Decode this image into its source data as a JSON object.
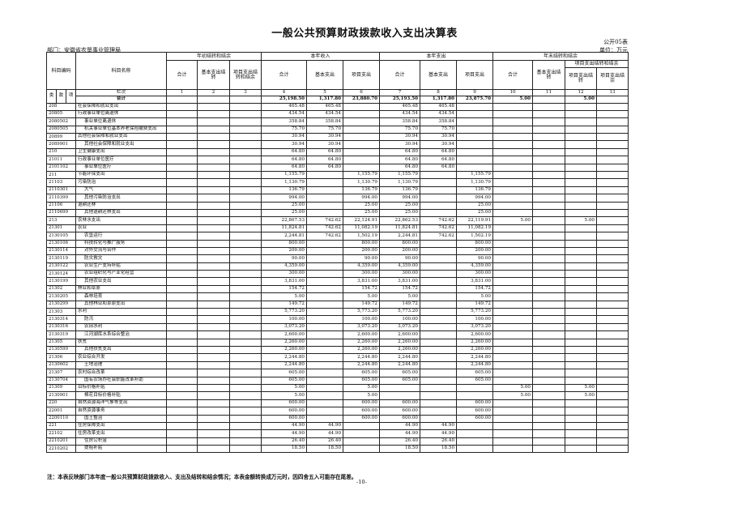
{
  "title": "一般公共预算财政拨款收入支出决算表",
  "form_no": "公开05表",
  "unit": "单位：万元",
  "department": "部门：安徽省农垦事业管理局",
  "headers": {
    "code": "科目编码",
    "name": "科目名称",
    "group_begin": "年初结转和结余",
    "group_income": "本年收入",
    "group_expense": "本年支出",
    "group_end": "年末结转和结余",
    "total": "合计",
    "basic_carry": "基本支出结转",
    "project_carry_balance": "项目支出结转和结余",
    "basic": "基本支出",
    "project": "项目支出",
    "project_carry": "项目支出结转",
    "project_balance": "项目支出结余",
    "lei": "类",
    "kuan": "款",
    "xiang": "项",
    "column_index_label": "栏次",
    "column_indices": [
      "1",
      "2",
      "3",
      "4",
      "5",
      "6",
      "7",
      "8",
      "9",
      "10",
      "11",
      "12",
      "13"
    ],
    "total_row_label": "合计"
  },
  "total_row": [
    "",
    "",
    "",
    "25,198.50",
    "1,317.80",
    "23,880.70",
    "25,193.50",
    "1,317.80",
    "23,875.70",
    "5.00",
    "",
    "5.00",
    ""
  ],
  "rows": [
    {
      "code": "208",
      "name": "社会保障和就业支出",
      "level": 0,
      "v": [
        "",
        "",
        "",
        "465.48",
        "465.48",
        "",
        "465.48",
        "465.48",
        "",
        "",
        "",
        "",
        ""
      ]
    },
    {
      "code": "20805",
      "name": "行政事业单位离退休",
      "level": 0,
      "v": [
        "",
        "",
        "",
        "434.54",
        "434.54",
        "",
        "434.54",
        "434.54",
        "",
        "",
        "",
        "",
        ""
      ]
    },
    {
      "code": "2080502",
      "name": "事业单位离退休",
      "level": 1,
      "v": [
        "",
        "",
        "",
        "358.84",
        "358.84",
        "",
        "358.84",
        "358.84",
        "",
        "",
        "",
        "",
        ""
      ]
    },
    {
      "code": "2080505",
      "name": "机关事业单位基本养老保险缴费支出",
      "level": 1,
      "v": [
        "",
        "",
        "",
        "75.70",
        "75.70",
        "",
        "75.70",
        "75.70",
        "",
        "",
        "",
        "",
        ""
      ]
    },
    {
      "code": "20899",
      "name": "其他社会保障和就业支出",
      "level": 0,
      "v": [
        "",
        "",
        "",
        "30.94",
        "30.94",
        "",
        "30.94",
        "30.94",
        "",
        "",
        "",
        "",
        ""
      ]
    },
    {
      "code": "2089901",
      "name": "其他社会保障和就业支出",
      "level": 1,
      "v": [
        "",
        "",
        "",
        "30.94",
        "30.94",
        "",
        "30.94",
        "30.94",
        "",
        "",
        "",
        "",
        ""
      ]
    },
    {
      "code": "210",
      "name": "卫生健康支出",
      "level": 0,
      "v": [
        "",
        "",
        "",
        "64.80",
        "64.80",
        "",
        "64.80",
        "64.80",
        "",
        "",
        "",
        "",
        ""
      ]
    },
    {
      "code": "21011",
      "name": "行政事业单位医疗",
      "level": 0,
      "v": [
        "",
        "",
        "",
        "64.80",
        "64.80",
        "",
        "64.80",
        "64.80",
        "",
        "",
        "",
        "",
        ""
      ]
    },
    {
      "code": "2101102",
      "name": "事业单位医疗",
      "level": 1,
      "v": [
        "",
        "",
        "",
        "64.80",
        "64.80",
        "",
        "64.80",
        "64.80",
        "",
        "",
        "",
        "",
        ""
      ]
    },
    {
      "code": "211",
      "name": "节能环保支出",
      "level": 0,
      "v": [
        "",
        "",
        "",
        "1,155.79",
        "",
        "1,155.79",
        "1,155.79",
        "",
        "1,155.79",
        "",
        "",
        "",
        ""
      ]
    },
    {
      "code": "21103",
      "name": "污染防治",
      "level": 0,
      "v": [
        "",
        "",
        "",
        "1,130.79",
        "",
        "1,130.79",
        "1,130.79",
        "",
        "1,130.79",
        "",
        "",
        "",
        ""
      ]
    },
    {
      "code": "2110301",
      "name": "大气",
      "level": 1,
      "v": [
        "",
        "",
        "",
        "136.79",
        "",
        "136.79",
        "136.79",
        "",
        "136.79",
        "",
        "",
        "",
        ""
      ]
    },
    {
      "code": "2110399",
      "name": "其他污染防治支出",
      "level": 1,
      "v": [
        "",
        "",
        "",
        "994.00",
        "",
        "994.00",
        "994.00",
        "",
        "994.00",
        "",
        "",
        "",
        ""
      ]
    },
    {
      "code": "21106",
      "name": "退耕还林",
      "level": 0,
      "v": [
        "",
        "",
        "",
        "25.00",
        "",
        "25.00",
        "25.00",
        "",
        "25.00",
        "",
        "",
        "",
        ""
      ]
    },
    {
      "code": "2110699",
      "name": "其他退耕还林支出",
      "level": 1,
      "v": [
        "",
        "",
        "",
        "25.00",
        "",
        "25.00",
        "25.00",
        "",
        "25.00",
        "",
        "",
        "",
        ""
      ]
    },
    {
      "code": "213",
      "name": "农林水支出",
      "level": 0,
      "v": [
        "",
        "",
        "",
        "22,867.53",
        "742.62",
        "22,124.91",
        "22,862.53",
        "742.62",
        "22,119.91",
        "5.00",
        "",
        "5.00",
        ""
      ]
    },
    {
      "code": "21301",
      "name": "农业",
      "level": 0,
      "v": [
        "",
        "",
        "",
        "11,824.81",
        "742.62",
        "11,082.19",
        "11,824.81",
        "742.62",
        "11,082.19",
        "",
        "",
        "",
        ""
      ]
    },
    {
      "code": "2130105",
      "name": "农垦运行",
      "level": 1,
      "v": [
        "",
        "",
        "",
        "2,244.81",
        "742.62",
        "1,502.19",
        "2,244.81",
        "742.62",
        "1,502.19",
        "",
        "",
        "",
        ""
      ]
    },
    {
      "code": "2130106",
      "name": "科技转化与推广服务",
      "level": 1,
      "v": [
        "",
        "",
        "",
        "800.00",
        "",
        "800.00",
        "800.00",
        "",
        "800.00",
        "",
        "",
        "",
        ""
      ]
    },
    {
      "code": "2130114",
      "name": "对外交流与合作",
      "level": 1,
      "v": [
        "",
        "",
        "",
        "200.00",
        "",
        "200.00",
        "200.00",
        "",
        "200.00",
        "",
        "",
        "",
        ""
      ]
    },
    {
      "code": "2130119",
      "name": "防灾救灾",
      "level": 1,
      "v": [
        "",
        "",
        "",
        "90.00",
        "",
        "90.00",
        "90.00",
        "",
        "90.00",
        "",
        "",
        "",
        ""
      ]
    },
    {
      "code": "2130122",
      "name": "农业生产支持补贴",
      "level": 1,
      "v": [
        "",
        "",
        "",
        "4,359.00",
        "",
        "4,359.00",
        "4,359.00",
        "",
        "4,359.00",
        "",
        "",
        "",
        ""
      ]
    },
    {
      "code": "2130124",
      "name": "农业组织化与产业化经营",
      "level": 1,
      "v": [
        "",
        "",
        "",
        "300.00",
        "",
        "300.00",
        "300.00",
        "",
        "300.00",
        "",
        "",
        "",
        ""
      ]
    },
    {
      "code": "2130199",
      "name": "其他农业支出",
      "level": 1,
      "v": [
        "",
        "",
        "",
        "3,831.00",
        "",
        "3,831.00",
        "3,831.00",
        "",
        "3,831.00",
        "",
        "",
        "",
        ""
      ]
    },
    {
      "code": "21302",
      "name": "林业和草原",
      "level": 0,
      "v": [
        "",
        "",
        "",
        "154.72",
        "",
        "154.72",
        "154.72",
        "",
        "154.72",
        "",
        "",
        "",
        ""
      ]
    },
    {
      "code": "2130205",
      "name": "森林培育",
      "level": 1,
      "v": [
        "",
        "",
        "",
        "5.00",
        "",
        "5.00",
        "5.00",
        "",
        "5.00",
        "",
        "",
        "",
        ""
      ]
    },
    {
      "code": "2130299",
      "name": "其他林业和草原支出",
      "level": 1,
      "v": [
        "",
        "",
        "",
        "149.72",
        "",
        "149.72",
        "149.72",
        "",
        "149.72",
        "",
        "",
        "",
        ""
      ]
    },
    {
      "code": "21303",
      "name": "水利",
      "level": 0,
      "v": [
        "",
        "",
        "",
        "5,773.20",
        "",
        "5,773.20",
        "5,773.20",
        "",
        "5,773.20",
        "",
        "",
        "",
        ""
      ]
    },
    {
      "code": "2130314",
      "name": "防汛",
      "level": 1,
      "v": [
        "",
        "",
        "",
        "100.00",
        "",
        "100.00",
        "100.00",
        "",
        "100.00",
        "",
        "",
        "",
        ""
      ]
    },
    {
      "code": "2130316",
      "name": "农田水利",
      "level": 1,
      "v": [
        "",
        "",
        "",
        "3,073.20",
        "",
        "3,073.20",
        "3,073.20",
        "",
        "3,073.20",
        "",
        "",
        "",
        ""
      ]
    },
    {
      "code": "2130319",
      "name": "江河湖库水系综合整治",
      "level": 1,
      "v": [
        "",
        "",
        "",
        "2,600.00",
        "",
        "2,600.00",
        "2,600.00",
        "",
        "2,600.00",
        "",
        "",
        "",
        ""
      ]
    },
    {
      "code": "21305",
      "name": "扶贫",
      "level": 0,
      "v": [
        "",
        "",
        "",
        "2,260.00",
        "",
        "2,260.00",
        "2,260.00",
        "",
        "2,260.00",
        "",
        "",
        "",
        ""
      ]
    },
    {
      "code": "2130599",
      "name": "其他扶贫支出",
      "level": 1,
      "v": [
        "",
        "",
        "",
        "2,260.00",
        "",
        "2,260.00",
        "2,260.00",
        "",
        "2,260.00",
        "",
        "",
        "",
        ""
      ]
    },
    {
      "code": "21306",
      "name": "农业综合开发",
      "level": 0,
      "v": [
        "",
        "",
        "",
        "2,244.80",
        "",
        "2,244.80",
        "2,244.80",
        "",
        "2,244.80",
        "",
        "",
        "",
        ""
      ]
    },
    {
      "code": "2130602",
      "name": "土地治理",
      "level": 1,
      "v": [
        "",
        "",
        "",
        "2,244.80",
        "",
        "2,244.80",
        "2,244.80",
        "",
        "2,244.80",
        "",
        "",
        "",
        ""
      ]
    },
    {
      "code": "21307",
      "name": "农村综合改革",
      "level": 0,
      "v": [
        "",
        "",
        "",
        "605.00",
        "",
        "605.00",
        "605.00",
        "",
        "605.00",
        "",
        "",
        "",
        ""
      ]
    },
    {
      "code": "2130704",
      "name": "国有农场办社会职能改革补助",
      "level": 1,
      "v": [
        "",
        "",
        "",
        "605.00",
        "",
        "605.00",
        "605.00",
        "",
        "605.00",
        "",
        "",
        "",
        ""
      ]
    },
    {
      "code": "21309",
      "name": "目标价格补贴",
      "level": 0,
      "v": [
        "",
        "",
        "",
        "5.00",
        "",
        "5.00",
        "",
        "",
        "",
        "5.00",
        "",
        "5.00",
        ""
      ]
    },
    {
      "code": "2130901",
      "name": "棉花目标价格补贴",
      "level": 1,
      "v": [
        "",
        "",
        "",
        "5.00",
        "",
        "5.00",
        "",
        "",
        "",
        "5.00",
        "",
        "5.00",
        ""
      ]
    },
    {
      "code": "220",
      "name": "自然资源海洋气象等支出",
      "level": 0,
      "v": [
        "",
        "",
        "",
        "600.00",
        "",
        "600.00",
        "600.00",
        "",
        "600.00",
        "",
        "",
        "",
        ""
      ]
    },
    {
      "code": "22001",
      "name": "自然资源事务",
      "level": 0,
      "v": [
        "",
        "",
        "",
        "600.00",
        "",
        "600.00",
        "600.00",
        "",
        "600.00",
        "",
        "",
        "",
        ""
      ]
    },
    {
      "code": "2200110",
      "name": "国土整治",
      "level": 1,
      "v": [
        "",
        "",
        "",
        "600.00",
        "",
        "600.00",
        "600.00",
        "",
        "600.00",
        "",
        "",
        "",
        ""
      ]
    },
    {
      "code": "221",
      "name": "住房保障支出",
      "level": 0,
      "v": [
        "",
        "",
        "",
        "44.90",
        "44.90",
        "",
        "44.90",
        "44.90",
        "",
        "",
        "",
        "",
        ""
      ]
    },
    {
      "code": "22102",
      "name": "住房改革支出",
      "level": 0,
      "v": [
        "",
        "",
        "",
        "44.90",
        "44.90",
        "",
        "44.90",
        "44.90",
        "",
        "",
        "",
        "",
        ""
      ]
    },
    {
      "code": "2210201",
      "name": "住房公积金",
      "level": 1,
      "v": [
        "",
        "",
        "",
        "26.40",
        "26.40",
        "",
        "26.40",
        "26.40",
        "",
        "",
        "",
        "",
        ""
      ]
    },
    {
      "code": "2210202",
      "name": "提租补贴",
      "level": 1,
      "v": [
        "",
        "",
        "",
        "18.50",
        "18.50",
        "",
        "18.50",
        "18.50",
        "",
        "",
        "",
        "",
        ""
      ]
    }
  ],
  "note": "注：本表反映部门本年度一般公共预算财政拨款收入、支出及结转和结余情况；本表金额转换成万元时，因四舍五入可能存在尾差。",
  "page_number": "-10-"
}
